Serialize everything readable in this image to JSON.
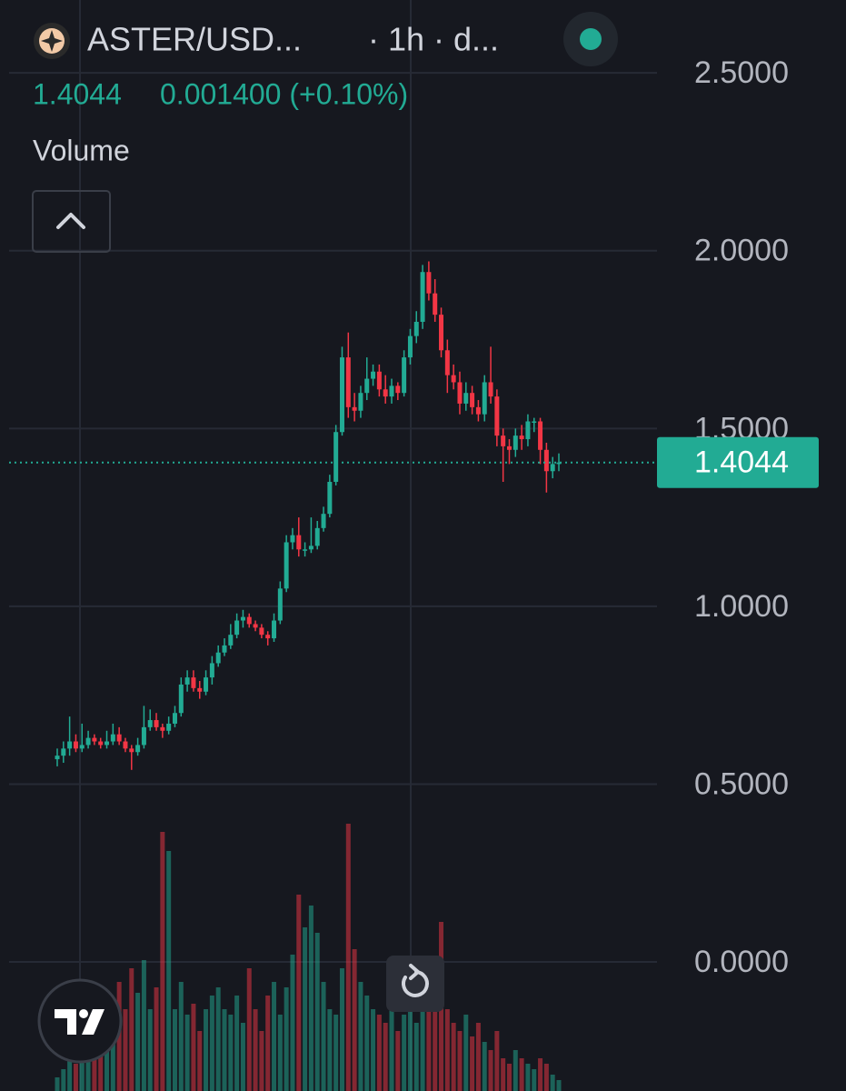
{
  "chart_data": {
    "type": "candlestick",
    "symbol": "ASTER/USD...",
    "interval": "· 1h · d...",
    "last_price": 1.4044,
    "change": "0.001400 (+0.10%)",
    "volume_label": "Volume",
    "up_color": "#22ab94",
    "down_color": "#f23645",
    "ylim": [
      -0.363,
      2.705
    ],
    "yticks": [
      {
        "value": 2.5,
        "label": "2.5000"
      },
      {
        "value": 2.0,
        "label": "2.0000"
      },
      {
        "value": 1.5,
        "label": "1.5000"
      },
      {
        "value": 1.0,
        "label": "1.0000"
      },
      {
        "value": 0.5,
        "label": "0.5000"
      },
      {
        "value": 0.0,
        "label": "0.0000"
      }
    ],
    "grid": true,
    "open": [
      0.57,
      0.58,
      0.6,
      0.62,
      0.6,
      0.61,
      0.63,
      0.62,
      0.61,
      0.62,
      0.64,
      0.62,
      0.6,
      0.59,
      0.61,
      0.66,
      0.68,
      0.66,
      0.65,
      0.67,
      0.7,
      0.78,
      0.8,
      0.77,
      0.76,
      0.8,
      0.84,
      0.87,
      0.89,
      0.92,
      0.96,
      0.97,
      0.95,
      0.94,
      0.92,
      0.91,
      0.96,
      1.05,
      1.18,
      1.2,
      1.16,
      1.16,
      1.17,
      1.22,
      1.26,
      1.35,
      1.49,
      1.7,
      1.56,
      1.55,
      1.6,
      1.64,
      1.66,
      1.61,
      1.59,
      1.62,
      1.6,
      1.7,
      1.76,
      1.8,
      1.94,
      1.88,
      1.82,
      1.72,
      1.65,
      1.63,
      1.57,
      1.6,
      1.56,
      1.54,
      1.63,
      1.59,
      1.48,
      1.45,
      1.44,
      1.48,
      1.47,
      1.52,
      1.52,
      1.44,
      1.38,
      1.4
    ],
    "high": [
      0.6,
      0.62,
      0.69,
      0.64,
      0.67,
      0.65,
      0.64,
      0.63,
      0.65,
      0.67,
      0.66,
      0.63,
      0.61,
      0.63,
      0.72,
      0.71,
      0.7,
      0.67,
      0.69,
      0.72,
      0.8,
      0.82,
      0.82,
      0.79,
      0.82,
      0.86,
      0.89,
      0.91,
      0.95,
      0.98,
      0.99,
      0.98,
      0.96,
      0.95,
      0.93,
      0.98,
      1.07,
      1.2,
      1.22,
      1.25,
      1.18,
      1.25,
      1.24,
      1.28,
      1.37,
      1.51,
      1.73,
      1.77,
      1.6,
      1.62,
      1.7,
      1.68,
      1.68,
      1.65,
      1.64,
      1.63,
      1.72,
      1.78,
      1.83,
      1.96,
      1.97,
      1.92,
      1.84,
      1.75,
      1.68,
      1.66,
      1.63,
      1.62,
      1.58,
      1.65,
      1.73,
      1.61,
      1.5,
      1.47,
      1.5,
      1.51,
      1.54,
      1.53,
      1.53,
      1.46,
      1.42,
      1.43
    ],
    "low": [
      0.55,
      0.56,
      0.58,
      0.59,
      0.59,
      0.6,
      0.61,
      0.6,
      0.6,
      0.61,
      0.61,
      0.59,
      0.54,
      0.58,
      0.6,
      0.65,
      0.65,
      0.63,
      0.64,
      0.66,
      0.69,
      0.76,
      0.76,
      0.74,
      0.75,
      0.78,
      0.83,
      0.86,
      0.88,
      0.91,
      0.94,
      0.94,
      0.93,
      0.91,
      0.89,
      0.9,
      0.95,
      1.04,
      1.16,
      1.14,
      1.14,
      1.15,
      1.16,
      1.21,
      1.25,
      1.34,
      1.48,
      1.53,
      1.52,
      1.53,
      1.58,
      1.62,
      1.59,
      1.57,
      1.57,
      1.58,
      1.59,
      1.68,
      1.74,
      1.78,
      1.86,
      1.8,
      1.7,
      1.6,
      1.61,
      1.54,
      1.55,
      1.54,
      1.52,
      1.52,
      1.57,
      1.45,
      1.35,
      1.4,
      1.42,
      1.44,
      1.45,
      1.49,
      1.4,
      1.32,
      1.36,
      1.38
    ],
    "close": [
      0.58,
      0.6,
      0.62,
      0.6,
      0.61,
      0.63,
      0.62,
      0.61,
      0.62,
      0.64,
      0.62,
      0.6,
      0.59,
      0.61,
      0.66,
      0.68,
      0.66,
      0.65,
      0.67,
      0.7,
      0.78,
      0.8,
      0.77,
      0.76,
      0.8,
      0.84,
      0.87,
      0.89,
      0.92,
      0.96,
      0.97,
      0.95,
      0.94,
      0.92,
      0.91,
      0.96,
      1.05,
      1.18,
      1.2,
      1.16,
      1.16,
      1.17,
      1.22,
      1.26,
      1.35,
      1.49,
      1.7,
      1.56,
      1.55,
      1.6,
      1.64,
      1.66,
      1.61,
      1.59,
      1.62,
      1.6,
      1.7,
      1.76,
      1.8,
      1.94,
      1.88,
      1.82,
      1.72,
      1.65,
      1.63,
      1.57,
      1.6,
      1.56,
      1.54,
      1.63,
      1.59,
      1.48,
      1.45,
      1.44,
      1.48,
      1.47,
      1.52,
      1.52,
      1.44,
      1.38,
      1.4,
      1.4044
    ],
    "volume": [
      5,
      8,
      12,
      10,
      14,
      25,
      32,
      22,
      18,
      28,
      40,
      30,
      45,
      36,
      48,
      30,
      38,
      95,
      88,
      30,
      40,
      28,
      32,
      22,
      30,
      35,
      38,
      30,
      28,
      35,
      25,
      45,
      30,
      22,
      35,
      40,
      28,
      38,
      50,
      72,
      60,
      68,
      58,
      40,
      30,
      28,
      45,
      98,
      52,
      40,
      35,
      30,
      28,
      25,
      30,
      22,
      28,
      35,
      25,
      45,
      30,
      38,
      62,
      30,
      25,
      22,
      28,
      20,
      25,
      18,
      15,
      22,
      12,
      10,
      15,
      12,
      10,
      8,
      12,
      10,
      6,
      4
    ],
    "volume_ylim": [
      0,
      100
    ]
  }
}
